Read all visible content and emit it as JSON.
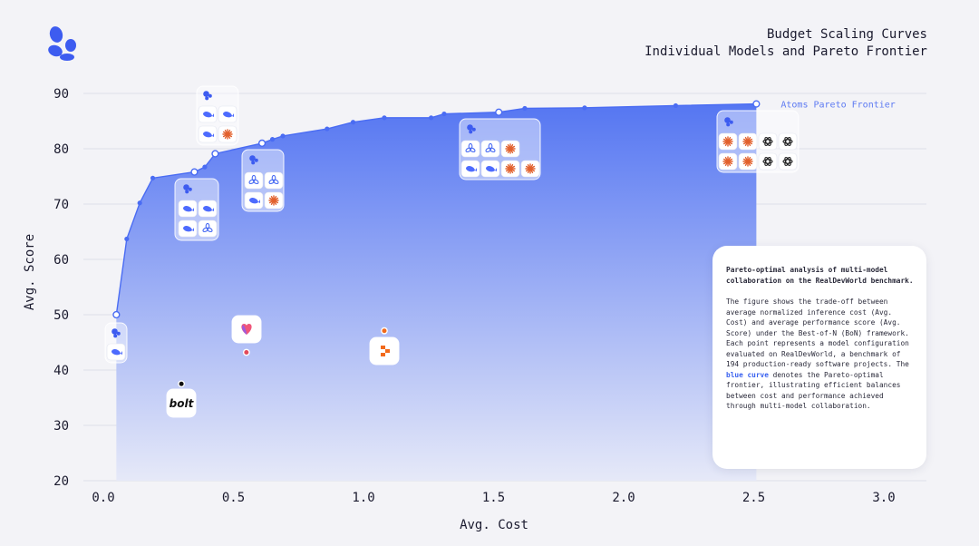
{
  "title": {
    "line1": "Budget Scaling Curves",
    "line2": "Individual Models and Pareto Frontier"
  },
  "colors": {
    "frontier": "#4a6cf3",
    "fill_top": "#5576f2",
    "fill_bottom": "#e6e9f8",
    "grid": "#d7d9e4",
    "text": "#1a1a2e",
    "label": "#5d7af2"
  },
  "info_card": {
    "title": "Pareto-optimal analysis of multi-model collaboration on the RealDevWorld benchmark.",
    "body_before": "The figure shows the trade-off between average normalized inference cost (Avg. Cost) and average performance score (Avg. Score) under the Best-of-N (BoN) framework. Each point represents a model configuration evaluated on RealDevWorld, a benchmark of 194 production-ready software projects. The ",
    "highlight": "blue curve",
    "body_after": " denotes the Pareto-optimal frontier, illustrating efficient balances between cost and performance achieved through multi-model collaboration."
  },
  "chart_data": {
    "type": "area",
    "xlabel": "Avg. Cost",
    "ylabel": "Avg. Score",
    "xlim": [
      0.0,
      3.1
    ],
    "ylim": [
      20,
      92
    ],
    "x_ticks": [
      "0.0",
      "0.5",
      "1.0",
      "1.5",
      "2.0",
      "2.5",
      "3.0"
    ],
    "y_ticks": [
      "20",
      "30",
      "40",
      "50",
      "60",
      "70",
      "80",
      "90"
    ],
    "grid": "horizontal",
    "series": [
      {
        "name": "Atoms Pareto Frontier",
        "x": [
          0.05,
          0.09,
          0.14,
          0.19,
          0.35,
          0.39,
          0.43,
          0.61,
          0.65,
          0.69,
          0.86,
          0.96,
          1.08,
          1.26,
          1.31,
          1.52,
          1.62,
          1.85,
          2.2,
          2.51
        ],
        "y": [
          50.0,
          63.7,
          70.2,
          74.7,
          75.8,
          76.7,
          79.1,
          81.0,
          81.7,
          82.3,
          83.6,
          84.8,
          85.6,
          85.6,
          86.3,
          86.6,
          87.3,
          87.4,
          87.8,
          88.1
        ],
        "marked": [
          0,
          4,
          6,
          7,
          15,
          19
        ]
      }
    ],
    "single_models": [
      {
        "name": "bolt",
        "x": 0.3,
        "y": 37.5,
        "color": "#111111"
      },
      {
        "name": "lovable",
        "x": 0.55,
        "y": 43.2,
        "color": "#e24a5a"
      },
      {
        "name": "replit",
        "x": 1.08,
        "y": 47.1,
        "color": "#f26a1b"
      }
    ],
    "model_icons": {
      "bolt": "bolt",
      "atoms": "atoms-icon",
      "deepseek": "deepseek-whale-icon",
      "gemini": "gemini-flower-icon",
      "claude": "claude-asterisk-icon",
      "openai": "openai-knot-icon",
      "lovable": "lovable-heart-icon",
      "replit": "replit-icon"
    }
  }
}
